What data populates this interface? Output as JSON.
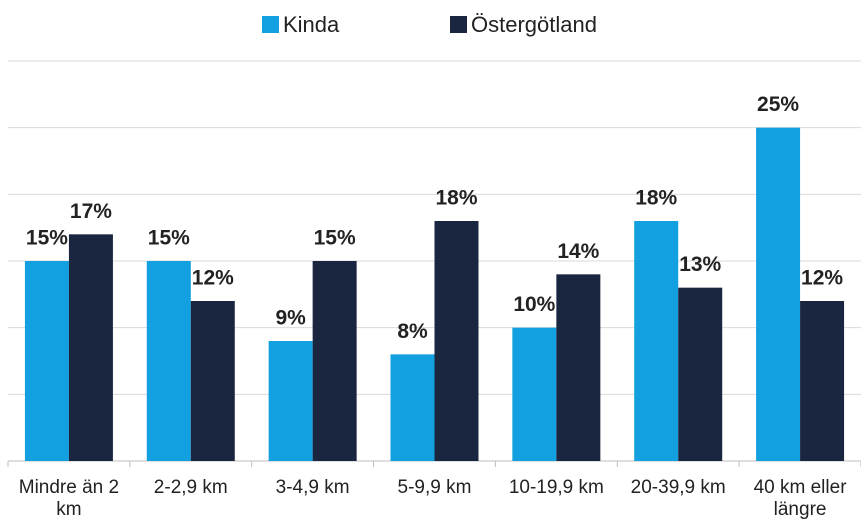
{
  "chart_data": {
    "type": "bar",
    "categories": [
      "Mindre än 2 km",
      "2-2,9 km",
      "3-4,9 km",
      "5-9,9 km",
      "10-19,9 km",
      "20-39,9 km",
      "40 km eller längre"
    ],
    "series": [
      {
        "name": "Kinda",
        "color": "#13a0e0",
        "values": [
          15,
          15,
          9,
          8,
          10,
          18,
          25
        ],
        "value_labels": [
          "15%",
          "15%",
          "9%",
          "8%",
          "10%",
          "18%",
          "25%"
        ]
      },
      {
        "name": "Östergötland",
        "color": "#1a2640",
        "values": [
          17,
          12,
          15,
          18,
          14,
          13,
          12
        ],
        "value_labels": [
          "17%",
          "12%",
          "15%",
          "18%",
          "14%",
          "13%",
          "12%"
        ]
      }
    ],
    "ylim": [
      0,
      30
    ],
    "yticks": [
      0,
      5,
      10,
      15,
      20,
      25,
      30
    ],
    "grid": true,
    "legend": "top"
  }
}
